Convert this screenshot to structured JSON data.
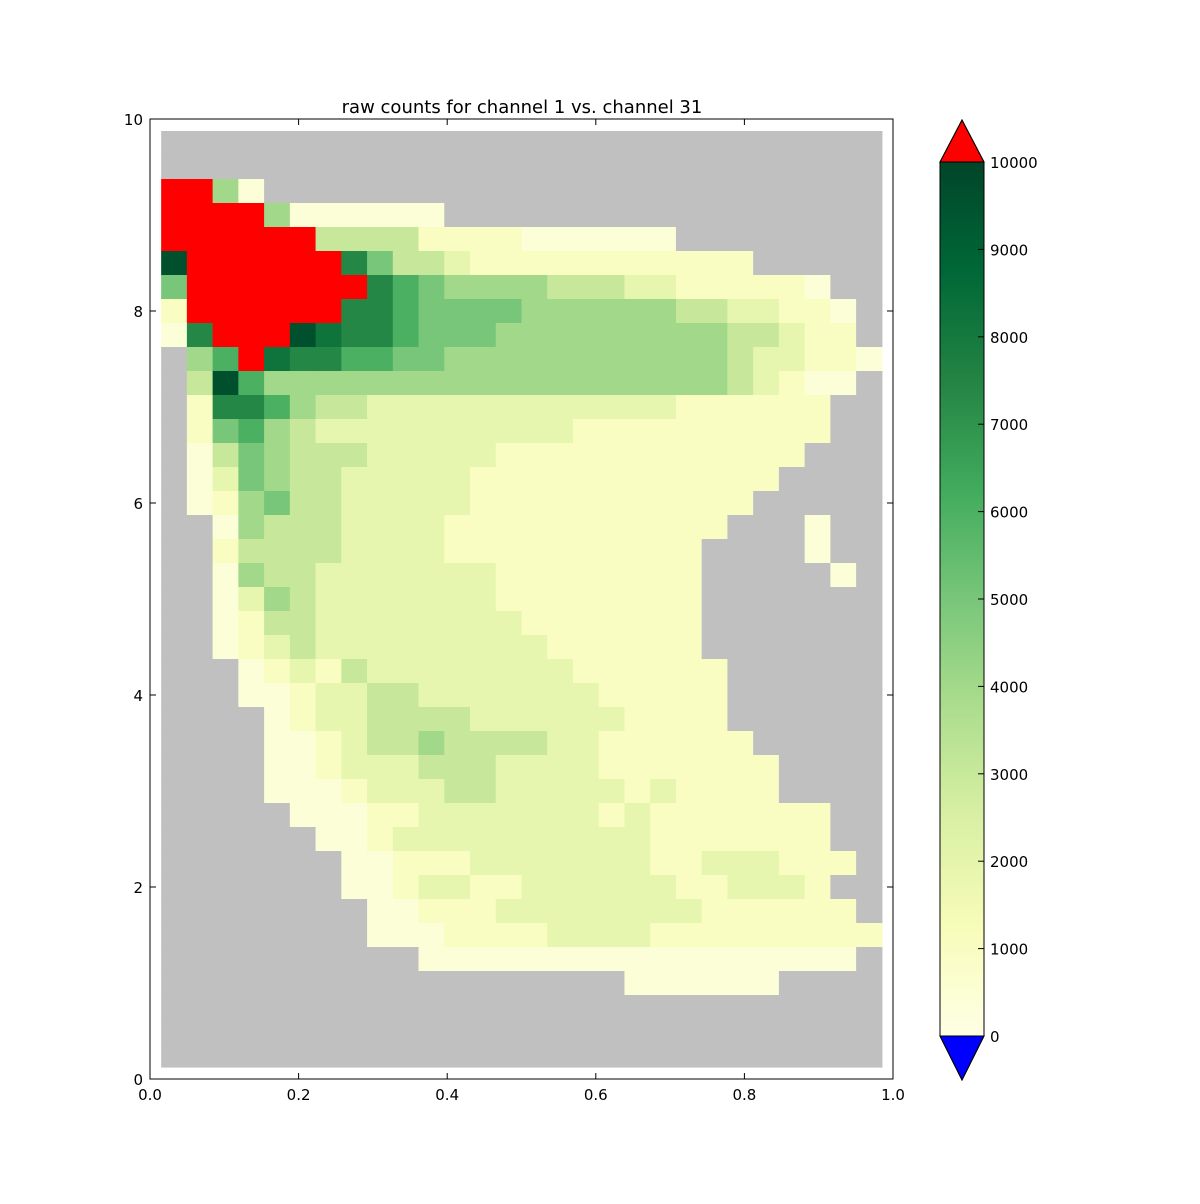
{
  "chart_data": {
    "type": "heatmap",
    "title": "raw counts for channel 1 vs. channel 31",
    "xlabel": "",
    "ylabel": "",
    "xlim": [
      0.0,
      1.0
    ],
    "ylim": [
      0,
      10
    ],
    "x_ticks": [
      "0.0",
      "0.2",
      "0.4",
      "0.6",
      "0.8",
      "1.0"
    ],
    "y_ticks": [
      "0",
      "2",
      "4",
      "6",
      "8",
      "10"
    ],
    "x_bin_range": [
      0.015,
      0.985
    ],
    "y_bin_range": [
      0.125,
      9.875
    ],
    "n_x_bins": 28,
    "n_y_bins": 39,
    "colorbar": {
      "vmin": 0,
      "vmax": 10000,
      "ticks": [
        "0",
        "1000",
        "2000",
        "3000",
        "4000",
        "5000",
        "6000",
        "7000",
        "8000",
        "9000",
        "10000"
      ],
      "over_color": "#ff0000",
      "under_color": "#0000ff",
      "colormap": [
        "#ffffe5",
        "#f7fcb9",
        "#d9f0a3",
        "#addd8e",
        "#78c679",
        "#41ab5d",
        "#238443",
        "#006837",
        "#004529"
      ]
    },
    "missing_color": "#c0c0c0",
    "bin_rows_top_to_bottom": [
      "----------------------------",
      "----------------------------",
      "RR40------------------------",
      "RRRR4000000-----------------",
      "RRRRRR33331111000000--------",
      "9RRRRRR7533211111111111-----",
      "5RRRRRRR765444433322111110--",
      "1RRRRRR77655554444443322110-",
      "07RRR9877655544444444433211-",
      "-46R877665544444444444322110",
      "-39644444444444444444432100-",
      "-1776433222222222222111111--",
      "-1564322222222221111111111--",
      "-035433322222111111111111---",
      "-02543322222111111111111----",
      "-0145332222211111111111-----",
      "--04333222211111111111---0--",
      "--1333322221111111111----0--",
      "--0433222222211111111-----0-",
      "--0243222222211111111------",
      "--0133222222221111111------",
      "--0123222222222111111------",
      "---0121322222222111111-----",
      "---0012233222222211111-----",
      "----012233332222221111-----",
      "----0012334333322111111----",
      "----00122233322221111111---",
      "----00012223322222121111---",
      "-----000112222222121111111-",
      "------00122222222221111111-",
      "-------00111222222211222111",
      "-------0012211222222112221-",
      "--------0011122222222111111",
      "--------00011112222111111111",
      "----------00000000000000000",
      "------------------000000---",
      "----------------------------",
      "----------------------------",
      "----------------------------"
    ]
  }
}
